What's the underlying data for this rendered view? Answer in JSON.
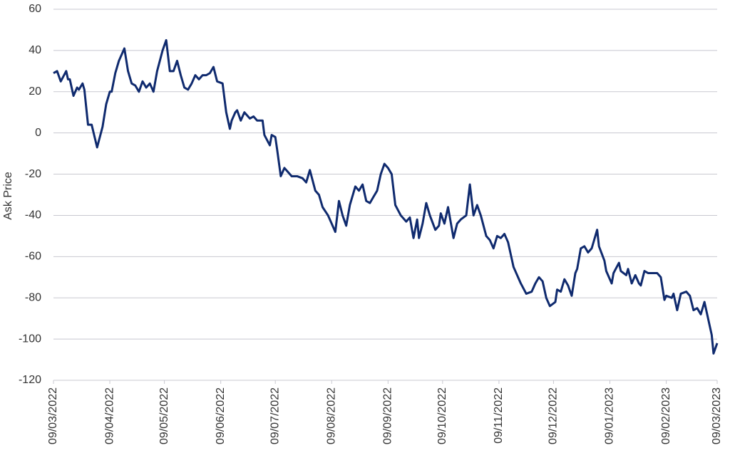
{
  "chart_data": {
    "type": "line",
    "y_label": "Ask Price",
    "x": [
      "09/03/2022",
      "11/03/2022",
      "13/03/2022",
      "16/03/2022",
      "17/03/2022",
      "18/03/2022",
      "20/03/2022",
      "22/03/2022",
      "23/03/2022",
      "25/03/2022",
      "26/03/2022",
      "28/03/2022",
      "30/03/2022",
      "02/04/2022",
      "05/04/2022",
      "07/04/2022",
      "09/04/2022",
      "10/04/2022",
      "12/04/2022",
      "14/04/2022",
      "17/04/2022",
      "19/04/2022",
      "21/04/2022",
      "23/04/2022",
      "25/04/2022",
      "27/04/2022",
      "29/04/2022",
      "01/05/2022",
      "03/05/2022",
      "05/05/2022",
      "08/05/2022",
      "10/05/2022",
      "12/05/2022",
      "14/05/2022",
      "16/05/2022",
      "18/05/2022",
      "20/05/2022",
      "22/05/2022",
      "24/05/2022",
      "26/05/2022",
      "28/05/2022",
      "30/05/2022",
      "01/06/2022",
      "03/06/2022",
      "05/06/2022",
      "07/06/2022",
      "10/06/2022",
      "12/06/2022",
      "14/06/2022",
      "15/06/2022",
      "17/06/2022",
      "18/06/2022",
      "20/06/2022",
      "22/06/2022",
      "25/06/2022",
      "27/06/2022",
      "29/06/2022",
      "02/07/2022",
      "03/07/2022",
      "06/07/2022",
      "07/07/2022",
      "09/07/2022",
      "10/07/2022",
      "12/07/2022",
      "14/07/2022",
      "16/07/2022",
      "18/07/2022",
      "21/07/2022",
      "24/07/2022",
      "26/07/2022",
      "28/07/2022",
      "31/07/2022",
      "02/08/2022",
      "04/08/2022",
      "07/08/2022",
      "09/08/2022",
      "11/08/2022",
      "13/08/2022",
      "15/08/2022",
      "17/08/2022",
      "19/08/2022",
      "22/08/2022",
      "24/08/2022",
      "26/08/2022",
      "28/08/2022",
      "30/08/2022",
      "01/09/2022",
      "03/09/2022",
      "05/09/2022",
      "07/09/2022",
      "09/09/2022",
      "11/09/2022",
      "13/09/2022",
      "16/09/2022",
      "19/09/2022",
      "21/09/2022",
      "23/09/2022",
      "25/09/2022",
      "26/09/2022",
      "28/09/2022",
      "30/09/2022",
      "02/10/2022",
      "05/10/2022",
      "07/10/2022",
      "08/10/2022",
      "10/10/2022",
      "12/10/2022",
      "15/10/2022",
      "17/10/2022",
      "19/10/2022",
      "22/10/2022",
      "24/10/2022",
      "26/10/2022",
      "28/10/2022",
      "30/10/2022",
      "02/11/2022",
      "04/11/2022",
      "06/11/2022",
      "08/11/2022",
      "10/11/2022",
      "12/11/2022",
      "14/11/2022",
      "17/11/2022",
      "19/11/2022",
      "21/11/2022",
      "24/11/2022",
      "27/11/2022",
      "29/11/2022",
      "01/12/2022",
      "03/12/2022",
      "05/12/2022",
      "07/12/2022",
      "10/12/2022",
      "11/12/2022",
      "13/12/2022",
      "15/12/2022",
      "17/12/2022",
      "19/12/2022",
      "21/12/2022",
      "22/12/2022",
      "24/12/2022",
      "26/12/2022",
      "28/12/2022",
      "30/12/2022",
      "02/01/2023",
      "03/01/2023",
      "06/01/2023",
      "07/01/2023",
      "10/01/2023",
      "11/01/2023",
      "14/01/2023",
      "15/01/2023",
      "18/01/2023",
      "19/01/2023",
      "21/01/2023",
      "23/01/2023",
      "25/01/2023",
      "26/01/2023",
      "28/01/2023",
      "30/01/2023",
      "01/02/2023",
      "04/02/2023",
      "06/02/2023",
      "08/02/2023",
      "09/02/2023",
      "12/02/2023",
      "13/02/2023",
      "15/02/2023",
      "17/02/2023",
      "20/02/2023",
      "22/02/2023",
      "24/02/2023",
      "26/02/2023",
      "28/02/2023",
      "02/03/2023",
      "04/03/2023",
      "06/03/2023",
      "07/03/2023",
      "09/03/2023"
    ],
    "series": [
      {
        "name": "Ask Price",
        "color": "#0f2a6e",
        "values": [
          29,
          30,
          25,
          30,
          26,
          26,
          18,
          22,
          21,
          24,
          21,
          4,
          4,
          -7,
          3,
          14,
          20,
          20,
          29,
          35,
          41,
          30,
          24,
          23,
          20,
          25,
          22,
          24,
          20,
          30,
          40,
          45,
          30,
          30,
          35,
          28,
          22,
          21,
          24,
          28,
          26,
          28,
          28,
          29,
          32,
          25,
          24,
          10,
          2,
          6,
          10,
          11,
          6,
          10,
          7,
          8,
          6,
          6,
          -1,
          -6,
          -1,
          -2,
          -8,
          -21,
          -17,
          -19,
          -21,
          -21,
          -22,
          -24,
          -18,
          -28,
          -30,
          -36,
          -40,
          -44,
          -48,
          -33,
          -40,
          -45,
          -35,
          -26,
          -28,
          -25,
          -33,
          -34,
          -31,
          -28,
          -20,
          -15,
          -17,
          -20,
          -35,
          -40,
          -43,
          -41,
          -51,
          -42,
          -51,
          -44,
          -34,
          -40,
          -47,
          -45,
          -39,
          -44,
          -36,
          -51,
          -44,
          -42,
          -40,
          -25,
          -40,
          -35,
          -40,
          -50,
          -52,
          -56,
          -50,
          -51,
          -49,
          -53,
          -65,
          -69,
          -73,
          -78,
          -77,
          -73,
          -70,
          -72,
          -80,
          -84,
          -82,
          -76,
          -77,
          -71,
          -74,
          -79,
          -68,
          -66,
          -56,
          -55,
          -58,
          -56,
          -47,
          -55,
          -62,
          -67,
          -73,
          -68,
          -63,
          -67,
          -69,
          -66,
          -73,
          -69,
          -73,
          -74,
          -67,
          -68,
          -68,
          -68,
          -70,
          -81,
          -79,
          -80,
          -78,
          -86,
          -78,
          -77,
          -79,
          -86,
          -85,
          -88,
          -82,
          -90,
          -98,
          -107,
          -102
        ]
      }
    ],
    "xlim": [
      "09/03/2022",
      "09/03/2023"
    ],
    "xticks": [
      "09/03/2022",
      "09/04/2022",
      "09/05/2022",
      "09/06/2022",
      "09/07/2022",
      "09/08/2022",
      "09/09/2022",
      "09/10/2022",
      "09/11/2022",
      "09/12/2022",
      "09/01/2023",
      "09/02/2023",
      "09/03/2023"
    ],
    "ylim": [
      -120,
      60
    ],
    "yticks": [
      -120,
      -100,
      -80,
      -60,
      -40,
      -20,
      0,
      20,
      40,
      60
    ],
    "grid": true
  }
}
